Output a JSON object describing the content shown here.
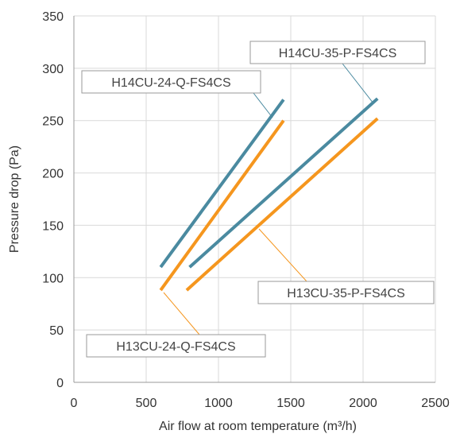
{
  "chart_data": {
    "type": "line",
    "xlabel": "Air flow at room temperature (m³/h)",
    "ylabel": "Pressure drop (Pa)",
    "xlim": [
      0,
      2500
    ],
    "ylim": [
      0,
      350
    ],
    "xticks": [
      0,
      500,
      1000,
      1500,
      2000,
      2500
    ],
    "yticks": [
      0,
      50,
      100,
      150,
      200,
      250,
      300,
      350
    ],
    "grid": true,
    "legend": "callout labels",
    "series": [
      {
        "name": "H14CU-24-Q-FS4CS",
        "color": "#4a8aa0",
        "points": [
          [
            600,
            110
          ],
          [
            1450,
            270
          ]
        ]
      },
      {
        "name": "H13CU-24-Q-FS4CS",
        "color": "#f5961e",
        "points": [
          [
            600,
            88
          ],
          [
            1450,
            250
          ]
        ]
      },
      {
        "name": "H14CU-35-P-FS4CS",
        "color": "#4a8aa0",
        "points": [
          [
            800,
            110
          ],
          [
            2100,
            271
          ]
        ]
      },
      {
        "name": "H13CU-35-P-FS4CS",
        "color": "#f5961e",
        "points": [
          [
            780,
            88
          ],
          [
            2100,
            252
          ]
        ]
      }
    ]
  }
}
